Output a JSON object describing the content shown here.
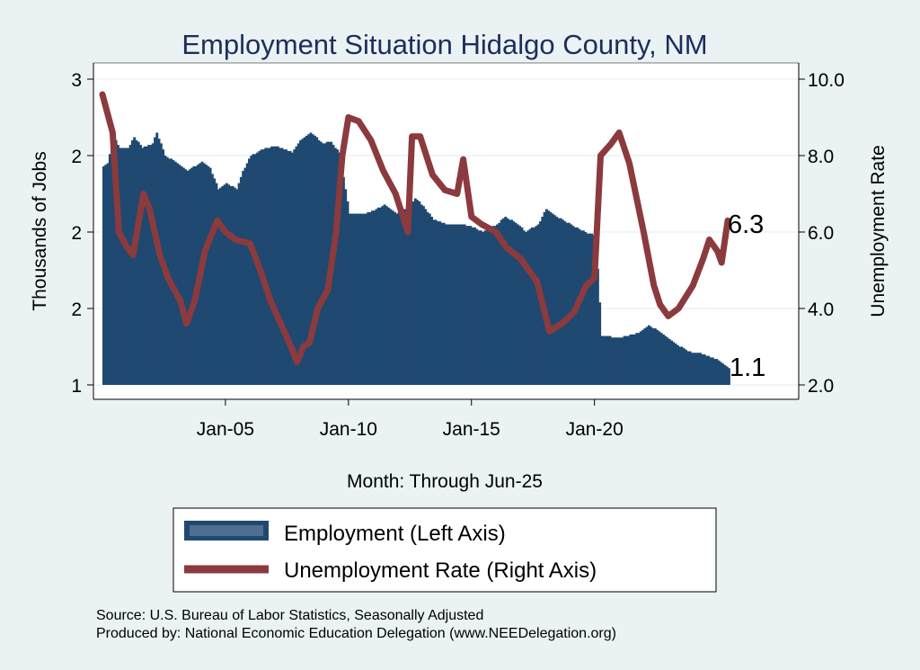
{
  "chart_data": {
    "type": "bar+line",
    "title": "Employment Situation Hidalgo  County, NM",
    "xlabel": "Month: Through Jun-25",
    "ylabel_left": "Thousands of Jobs",
    "ylabel_right": "Unemployment Rate",
    "x_range": [
      "2000-01",
      "2025-06"
    ],
    "x_ticks": [
      "Jan-05",
      "Jan-10",
      "Jan-15",
      "Jan-20"
    ],
    "left_ylim": [
      1.0,
      3.0
    ],
    "left_tick_values": [
      1.0,
      1.5,
      2.0,
      2.5,
      3.0
    ],
    "left_tick_labels": [
      "1",
      "2",
      "2",
      "2",
      "3"
    ],
    "right_ylim": [
      2.0,
      10.0
    ],
    "right_tick_labels": [
      "2.0",
      "4.0",
      "6.0",
      "8.0",
      "10.0"
    ],
    "grid": "horizontal",
    "legend_position": "bottom",
    "series": [
      {
        "name": "Employment (Left Axis)",
        "type": "bar",
        "color": "#1f4970",
        "axis": "left",
        "points": [
          [
            "2000-01",
            2.43
          ],
          [
            "2000-03",
            2.45
          ],
          [
            "2000-06",
            2.62
          ],
          [
            "2000-09",
            2.55
          ],
          [
            "2001-01",
            2.55
          ],
          [
            "2001-04",
            2.62
          ],
          [
            "2001-08",
            2.55
          ],
          [
            "2002-01",
            2.58
          ],
          [
            "2002-03",
            2.65
          ],
          [
            "2002-07",
            2.5
          ],
          [
            "2003-01",
            2.45
          ],
          [
            "2003-06",
            2.4
          ],
          [
            "2004-01",
            2.46
          ],
          [
            "2004-05",
            2.42
          ],
          [
            "2004-09",
            2.28
          ],
          [
            "2005-01",
            2.32
          ],
          [
            "2005-06",
            2.28
          ],
          [
            "2005-09",
            2.4
          ],
          [
            "2006-01",
            2.5
          ],
          [
            "2006-08",
            2.55
          ],
          [
            "2007-01",
            2.56
          ],
          [
            "2007-09",
            2.52
          ],
          [
            "2008-01",
            2.6
          ],
          [
            "2008-06",
            2.65
          ],
          [
            "2008-12",
            2.58
          ],
          [
            "2009-04",
            2.59
          ],
          [
            "2009-08",
            2.52
          ],
          [
            "2010-01",
            2.12
          ],
          [
            "2010-08",
            2.12
          ],
          [
            "2011-01",
            2.14
          ],
          [
            "2011-06",
            2.18
          ],
          [
            "2011-12",
            2.12
          ],
          [
            "2012-06",
            2.16
          ],
          [
            "2012-09",
            2.22
          ],
          [
            "2013-01",
            2.17
          ],
          [
            "2013-06",
            2.08
          ],
          [
            "2014-01",
            2.05
          ],
          [
            "2014-06",
            2.05
          ],
          [
            "2014-12",
            2.04
          ],
          [
            "2015-06",
            2.0
          ],
          [
            "2016-01",
            2.05
          ],
          [
            "2016-05",
            2.1
          ],
          [
            "2016-11",
            2.05
          ],
          [
            "2017-03",
            2.0
          ],
          [
            "2017-09",
            2.05
          ],
          [
            "2018-01",
            2.15
          ],
          [
            "2018-06",
            2.1
          ],
          [
            "2019-01",
            2.05
          ],
          [
            "2019-09",
            1.99
          ],
          [
            "2020-01",
            1.98
          ],
          [
            "2020-04",
            1.32
          ],
          [
            "2021-01",
            1.31
          ],
          [
            "2021-10",
            1.34
          ],
          [
            "2022-03",
            1.39
          ],
          [
            "2022-08",
            1.35
          ],
          [
            "2023-03",
            1.28
          ],
          [
            "2023-10",
            1.22
          ],
          [
            "2024-06",
            1.2
          ],
          [
            "2025-01",
            1.16
          ],
          [
            "2025-06",
            1.11
          ]
        ]
      },
      {
        "name": "Unemployment Rate (Right Axis)",
        "type": "line",
        "color": "#8b3a3e",
        "axis": "right",
        "points": [
          [
            "2000-01",
            9.6
          ],
          [
            "2000-06",
            8.6
          ],
          [
            "2000-09",
            6.0
          ],
          [
            "2001-01",
            5.6
          ],
          [
            "2001-04",
            5.4
          ],
          [
            "2001-09",
            7.0
          ],
          [
            "2001-12",
            6.6
          ],
          [
            "2002-05",
            5.4
          ],
          [
            "2002-09",
            4.8
          ],
          [
            "2003-03",
            4.2
          ],
          [
            "2003-06",
            3.6
          ],
          [
            "2003-10",
            4.2
          ],
          [
            "2004-03",
            5.5
          ],
          [
            "2004-09",
            6.3
          ],
          [
            "2005-01",
            6.0
          ],
          [
            "2005-06",
            5.8
          ],
          [
            "2006-01",
            5.7
          ],
          [
            "2006-06",
            5.0
          ],
          [
            "2006-11",
            4.2
          ],
          [
            "2007-04",
            3.6
          ],
          [
            "2007-09",
            3.0
          ],
          [
            "2007-12",
            2.6
          ],
          [
            "2008-03",
            3.0
          ],
          [
            "2008-06",
            3.1
          ],
          [
            "2008-10",
            4.0
          ],
          [
            "2009-03",
            4.5
          ],
          [
            "2009-07",
            6.0
          ],
          [
            "2009-10",
            8.0
          ],
          [
            "2010-01",
            9.0
          ],
          [
            "2010-06",
            8.9
          ],
          [
            "2010-12",
            8.4
          ],
          [
            "2011-06",
            7.6
          ],
          [
            "2011-12",
            7.0
          ],
          [
            "2012-06",
            6.0
          ],
          [
            "2012-08",
            8.5
          ],
          [
            "2012-12",
            8.5
          ],
          [
            "2013-06",
            7.5
          ],
          [
            "2013-12",
            7.1
          ],
          [
            "2014-06",
            7.0
          ],
          [
            "2014-09",
            7.9
          ],
          [
            "2015-01",
            6.4
          ],
          [
            "2015-06",
            6.2
          ],
          [
            "2016-01",
            6.0
          ],
          [
            "2016-06",
            5.6
          ],
          [
            "2017-01",
            5.3
          ],
          [
            "2017-09",
            4.7
          ],
          [
            "2018-03",
            3.4
          ],
          [
            "2018-09",
            3.6
          ],
          [
            "2019-03",
            3.9
          ],
          [
            "2019-09",
            4.6
          ],
          [
            "2020-01",
            4.8
          ],
          [
            "2020-04",
            8.0
          ],
          [
            "2020-09",
            8.3
          ],
          [
            "2021-01",
            8.6
          ],
          [
            "2021-06",
            7.8
          ],
          [
            "2022-01",
            6.0
          ],
          [
            "2022-06",
            4.6
          ],
          [
            "2022-09",
            4.1
          ],
          [
            "2023-01",
            3.8
          ],
          [
            "2023-06",
            4.0
          ],
          [
            "2024-01",
            4.6
          ],
          [
            "2024-06",
            5.3
          ],
          [
            "2024-09",
            5.8
          ],
          [
            "2025-01",
            5.5
          ],
          [
            "2025-03",
            5.2
          ],
          [
            "2025-06",
            6.3
          ]
        ]
      }
    ],
    "end_labels": {
      "employment": "1.1",
      "unemployment": "6.3"
    }
  },
  "source_note": "Source: U.S. Bureau of Labor Statistics, Seasonally Adjusted",
  "produced_note": "Produced by: National Economic Education Delegation (www.NEEDelegation.org)",
  "colors": {
    "background": "#eaf2f3",
    "plot_background": "#ffffff",
    "title": "#1e2d5c",
    "bar": "#1f4970",
    "line": "#8b3a3e",
    "legend_bar_inner": "#4f6f92"
  }
}
